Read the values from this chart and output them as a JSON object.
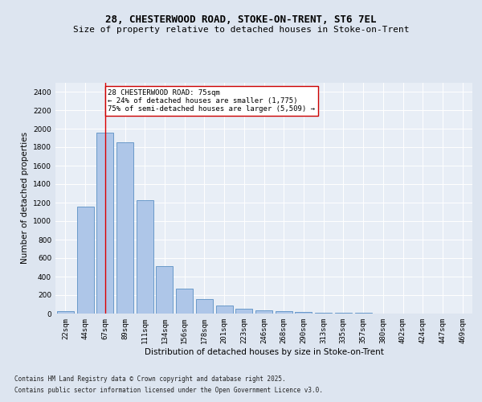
{
  "title_line1": "28, CHESTERWOOD ROAD, STOKE-ON-TRENT, ST6 7EL",
  "title_line2": "Size of property relative to detached houses in Stoke-on-Trent",
  "xlabel": "Distribution of detached houses by size in Stoke-on-Trent",
  "ylabel": "Number of detached properties",
  "categories": [
    "22sqm",
    "44sqm",
    "67sqm",
    "89sqm",
    "111sqm",
    "134sqm",
    "156sqm",
    "178sqm",
    "201sqm",
    "223sqm",
    "246sqm",
    "268sqm",
    "290sqm",
    "313sqm",
    "335sqm",
    "357sqm",
    "380sqm",
    "402sqm",
    "424sqm",
    "447sqm",
    "469sqm"
  ],
  "values": [
    25,
    1155,
    1960,
    1850,
    1230,
    515,
    270,
    155,
    90,
    48,
    38,
    22,
    15,
    12,
    8,
    5,
    3,
    2,
    1,
    1,
    1
  ],
  "bar_color": "#aec6e8",
  "bar_edge_color": "#5a8fc4",
  "highlight_color": "#dd0000",
  "vline_x": 2,
  "annotation_text": "28 CHESTERWOOD ROAD: 75sqm\n← 24% of detached houses are smaller (1,775)\n75% of semi-detached houses are larger (5,509) →",
  "annotation_box_color": "#ffffff",
  "annotation_box_edge": "#cc0000",
  "ylim": [
    0,
    2500
  ],
  "yticks": [
    0,
    200,
    400,
    600,
    800,
    1000,
    1200,
    1400,
    1600,
    1800,
    2000,
    2200,
    2400
  ],
  "bg_color": "#dde5f0",
  "axes_bg_color": "#e8eef6",
  "footer_line1": "Contains HM Land Registry data © Crown copyright and database right 2025.",
  "footer_line2": "Contains public sector information licensed under the Open Government Licence v3.0.",
  "title_fontsize": 9,
  "subtitle_fontsize": 8,
  "axis_label_fontsize": 7.5,
  "tick_fontsize": 6.5,
  "annotation_fontsize": 6.5,
  "footer_fontsize": 5.5
}
